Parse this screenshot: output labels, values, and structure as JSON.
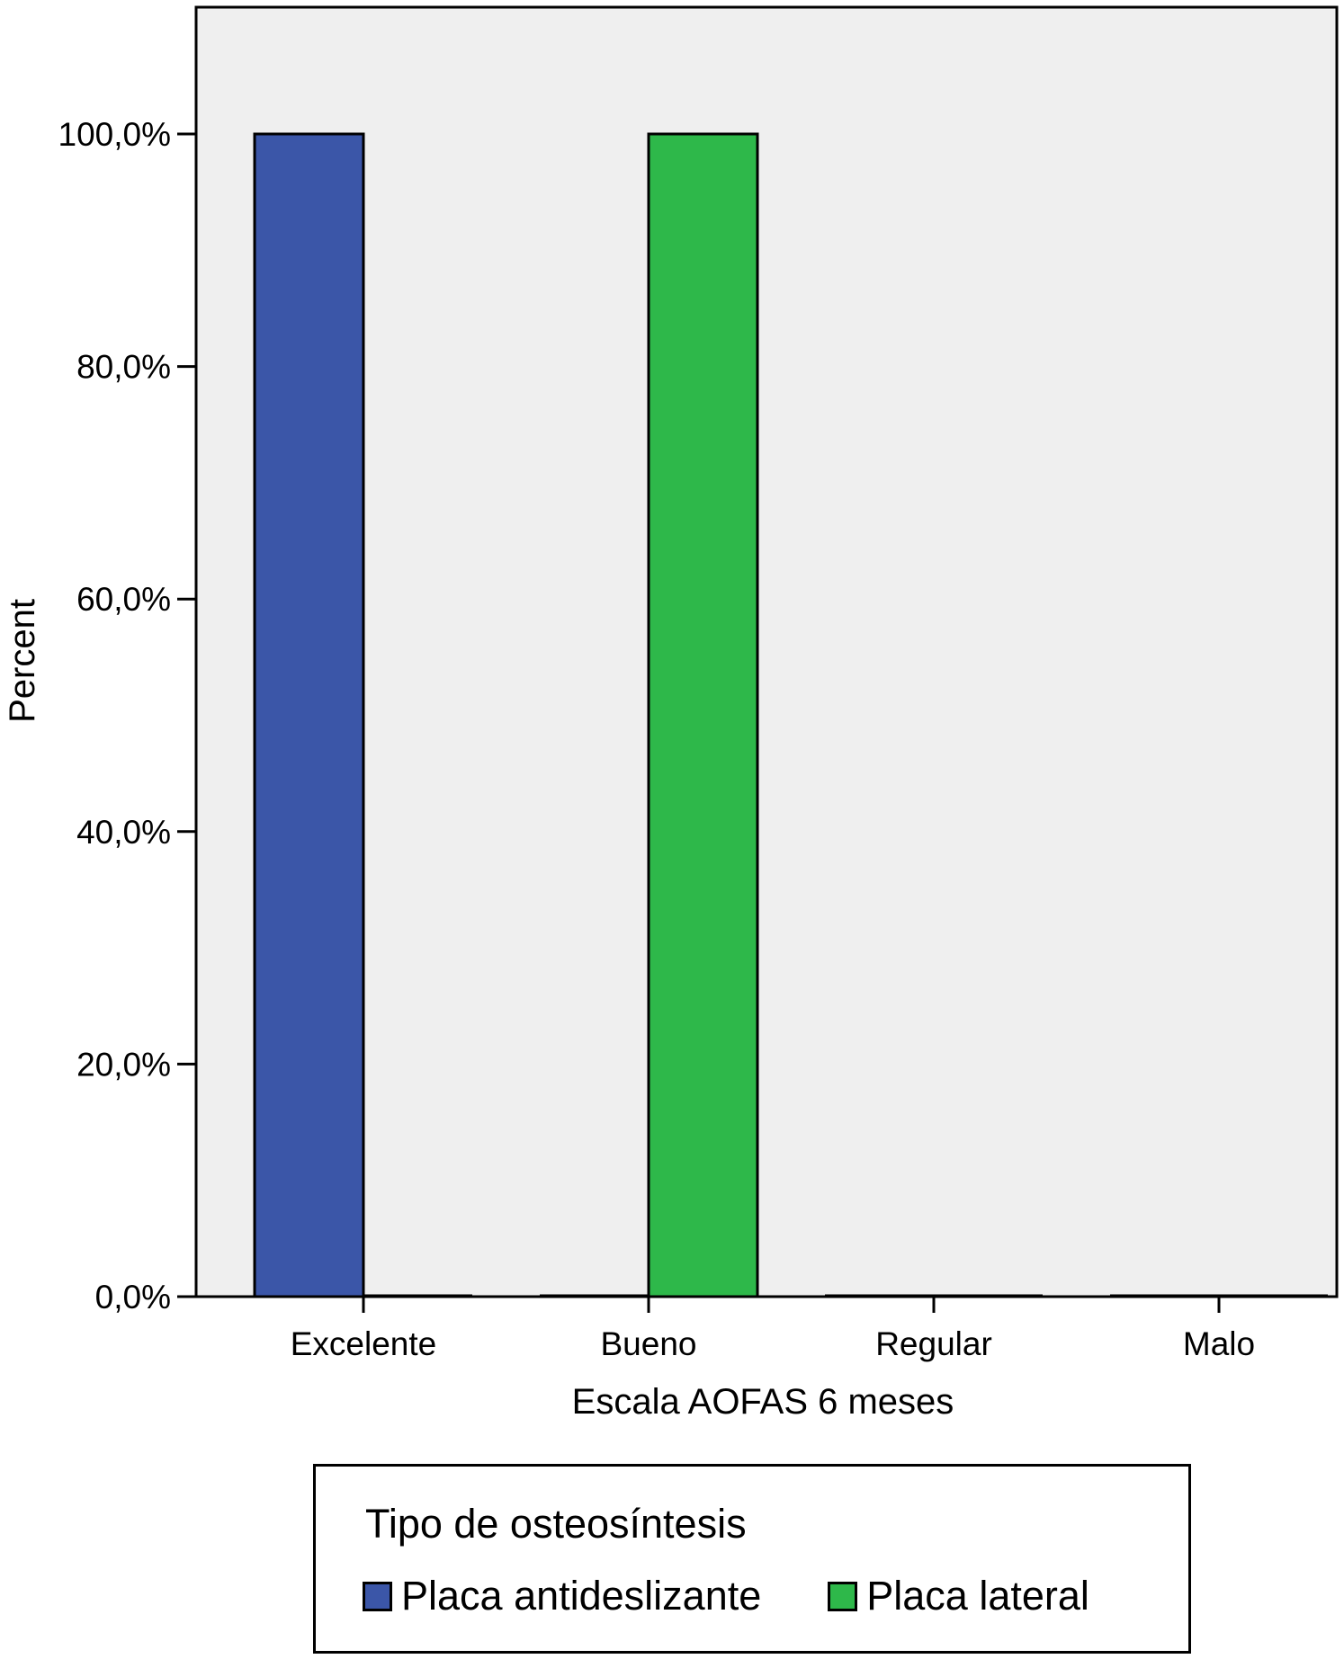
{
  "chart_data": {
    "type": "bar",
    "title": "",
    "xlabel": "Escala AOFAS 6 meses",
    "ylabel": "Percent",
    "ylim": [
      0,
      110
    ],
    "yticks": [
      0,
      20,
      40,
      60,
      80,
      100
    ],
    "ytick_labels": [
      "0,0%",
      "20,0%",
      "40,0%",
      "60,0%",
      "80,0%",
      "100,0%"
    ],
    "categories": [
      "Excelente",
      "Bueno",
      "Regular",
      "Malo"
    ],
    "series": [
      {
        "name": "Placa antideslizante",
        "color": "#3b56a8",
        "values": [
          100,
          0,
          0,
          0
        ]
      },
      {
        "name": "Placa lateral",
        "color": "#2eb84a",
        "values": [
          0,
          100,
          0,
          0
        ]
      }
    ],
    "grid": false,
    "plot_background": "#efefef",
    "legend": {
      "title": "Tipo de osteosíntesis",
      "position": "bottom"
    }
  }
}
